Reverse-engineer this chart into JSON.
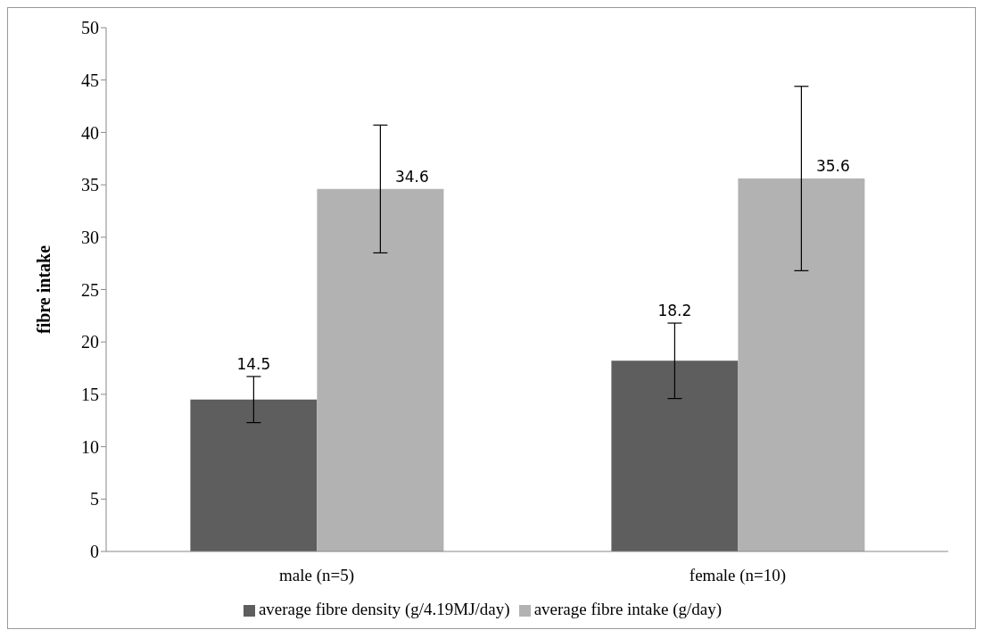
{
  "chart_data": {
    "type": "bar",
    "ylabel": "fibre intake",
    "categories": [
      "male (n=5)",
      "female (n=10)"
    ],
    "series": [
      {
        "name": "average fibre density (g/4.19MJ/day)",
        "color": "#5e5e5e",
        "values": [
          14.5,
          18.2
        ],
        "errors": [
          2.2,
          3.6
        ]
      },
      {
        "name": "average fibre intake (g/day)",
        "color": "#b2b2b2",
        "values": [
          34.6,
          35.6
        ],
        "errors": [
          6.1,
          8.8
        ]
      }
    ],
    "ylim": [
      0,
      50
    ],
    "yticks": [
      0,
      5,
      10,
      15,
      20,
      25,
      30,
      35,
      40,
      45,
      50
    ],
    "grid": false,
    "legend": "bottom",
    "data_labels": true
  }
}
